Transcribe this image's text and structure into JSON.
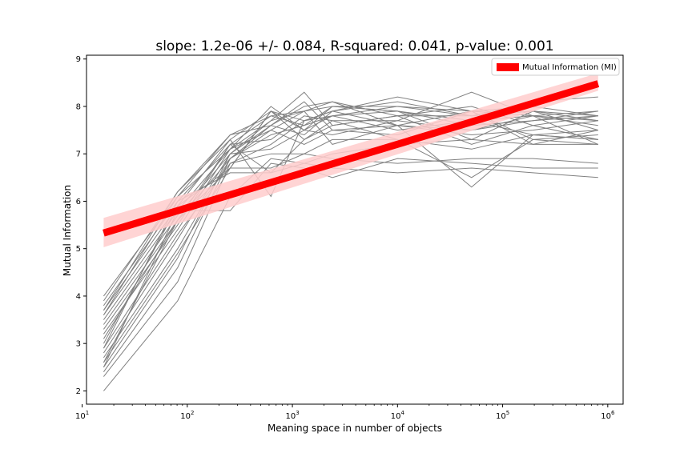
{
  "chart_data": {
    "type": "line",
    "title": "slope: 1.2e-06 +/- 0.084, R-squared: 0.041, p-value: 0.001",
    "xlabel": "Meaning space in number of objects",
    "ylabel": "Mutual Information",
    "x_scale": "log",
    "xlim": [
      11,
      1400000
    ],
    "ylim": [
      1.72,
      9.08
    ],
    "grid": false,
    "legend_position": "top-right",
    "x_ticks": [
      {
        "value": 10,
        "base": "10",
        "exp": "1"
      },
      {
        "value": 100,
        "base": "10",
        "exp": "2"
      },
      {
        "value": 1000,
        "base": "10",
        "exp": "3"
      },
      {
        "value": 10000,
        "base": "10",
        "exp": "4"
      },
      {
        "value": 100000,
        "base": "10",
        "exp": "5"
      },
      {
        "value": 1000000,
        "base": "10",
        "exp": "6"
      }
    ],
    "y_ticks": [
      "2",
      "3",
      "4",
      "5",
      "6",
      "7",
      "8",
      "9"
    ],
    "colors": {
      "series": "#808080",
      "fit_line": "#ff0000",
      "confidence_band": "#ffcccc"
    },
    "x": [
      16,
      81,
      256,
      625,
      1296,
      2401,
      10000,
      50625,
      194481,
      810000
    ],
    "series": [
      {
        "values": [
          3.8,
          6.0,
          7.2,
          7.8,
          7.6,
          8.0,
          7.9,
          7.7,
          7.8,
          7.7
        ]
      },
      {
        "values": [
          3.7,
          5.9,
          7.3,
          7.9,
          7.7,
          7.8,
          8.0,
          7.9,
          8.0,
          7.8
        ]
      },
      {
        "values": [
          3.6,
          5.8,
          7.1,
          7.5,
          7.9,
          8.1,
          7.6,
          7.5,
          7.7,
          7.9
        ]
      },
      {
        "values": [
          3.5,
          5.7,
          7.0,
          7.7,
          8.3,
          7.6,
          7.8,
          8.0,
          7.6,
          7.8
        ]
      },
      {
        "values": [
          3.4,
          5.6,
          6.9,
          7.6,
          7.4,
          7.9,
          8.1,
          7.8,
          7.9,
          7.5
        ]
      },
      {
        "values": [
          3.3,
          5.5,
          7.2,
          7.3,
          7.8,
          7.7,
          7.7,
          8.3,
          7.8,
          7.9
        ]
      },
      {
        "values": [
          3.2,
          5.4,
          7.1,
          8.0,
          7.5,
          7.8,
          7.9,
          7.6,
          7.7,
          7.8
        ]
      },
      {
        "values": [
          4.0,
          6.1,
          7.4,
          7.8,
          7.9,
          8.0,
          8.0,
          7.8,
          8.1,
          8.2
        ]
      },
      {
        "values": [
          2.9,
          5.3,
          6.8,
          7.2,
          7.7,
          7.9,
          8.2,
          7.9,
          7.8,
          7.6
        ]
      },
      {
        "values": [
          2.8,
          5.2,
          7.0,
          7.6,
          8.1,
          7.5,
          7.6,
          7.4,
          7.5,
          7.7
        ]
      },
      {
        "values": [
          2.7,
          5.0,
          6.9,
          7.4,
          7.6,
          7.8,
          7.5,
          7.7,
          7.4,
          7.5
        ]
      },
      {
        "values": [
          2.6,
          4.9,
          6.7,
          7.9,
          7.3,
          7.6,
          7.8,
          7.2,
          7.6,
          7.3
        ]
      },
      {
        "values": [
          2.5,
          4.8,
          7.0,
          7.1,
          7.5,
          7.4,
          7.7,
          7.5,
          7.8,
          7.2
        ]
      },
      {
        "values": [
          2.4,
          4.6,
          6.9,
          7.5,
          7.2,
          7.5,
          7.4,
          7.9,
          7.3,
          7.4
        ]
      },
      {
        "values": [
          2.3,
          4.3,
          6.8,
          7.0,
          7.0,
          7.3,
          7.3,
          7.1,
          7.4,
          7.3
        ]
      },
      {
        "values": [
          2.0,
          3.9,
          6.1,
          6.9,
          6.8,
          7.0,
          7.2,
          7.3,
          7.2,
          7.5
        ]
      },
      {
        "values": [
          3.0,
          5.9,
          6.7,
          6.7,
          7.0,
          6.9,
          6.8,
          6.9,
          6.9,
          6.8
        ]
      },
      {
        "values": [
          2.5,
          5.8,
          5.8,
          6.8,
          6.7,
          6.5,
          6.9,
          6.8,
          6.7,
          6.7
        ]
      },
      {
        "values": [
          2.9,
          6.0,
          6.6,
          6.6,
          6.8,
          6.7,
          6.6,
          6.7,
          6.6,
          6.5
        ]
      },
      {
        "values": [
          3.9,
          6.2,
          7.3,
          6.1,
          7.7,
          7.9,
          7.6,
          6.3,
          7.4,
          7.3
        ]
      },
      {
        "values": [
          3.1,
          5.6,
          7.2,
          6.6,
          7.3,
          7.7,
          7.3,
          6.5,
          7.3,
          7.2
        ]
      },
      {
        "values": [
          3.6,
          6.1,
          7.1,
          7.7,
          7.9,
          7.2,
          7.6,
          7.9,
          7.2,
          7.2
        ]
      },
      {
        "values": [
          2.6,
          5.6,
          6.7,
          7.9,
          7.5,
          8.0,
          7.9,
          7.3,
          7.9,
          7.8
        ]
      },
      {
        "values": [
          3.7,
          6.2,
          7.4,
          7.6,
          8.0,
          8.1,
          7.8,
          7.8,
          7.9,
          7.7
        ]
      }
    ],
    "fit": {
      "label": "Mutual Information (MI)",
      "x": [
        16,
        810000
      ],
      "y": [
        5.33,
        8.48
      ],
      "band_upper": [
        5.65,
        8.7
      ],
      "band_lower": [
        5.03,
        8.33
      ]
    }
  }
}
